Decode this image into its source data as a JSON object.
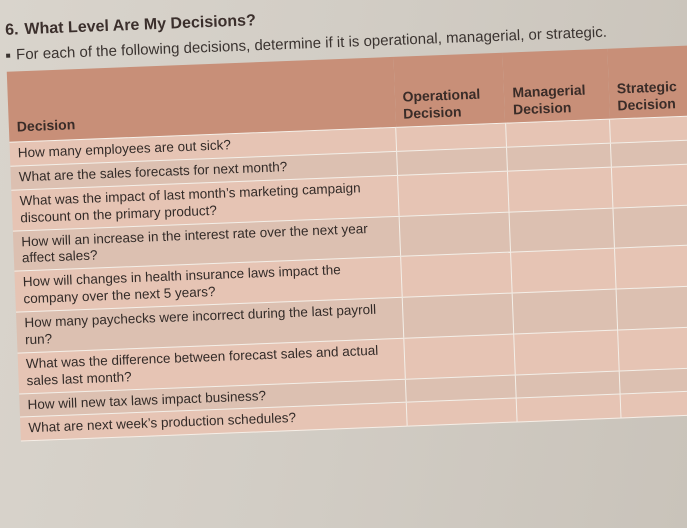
{
  "exercise": {
    "number": "6.",
    "title": "What Level Are My Decisions?",
    "instructions": "For each of the following decisions, determine if it is operational, managerial, or strategic."
  },
  "table": {
    "headers": {
      "decision": "Decision",
      "operational_line1": "Operational",
      "operational_line2": "Decision",
      "managerial_line1": "Managerial",
      "managerial_line2": "Decision",
      "strategic_line1": "Strategic",
      "strategic_line2": "Decision"
    },
    "rows": [
      "How many employees are out sick?",
      "What are the sales forecasts for next month?",
      "What was the impact of last month’s marketing campaign discount on the primary product?",
      "How will an increase in the interest rate over the next year affect sales?",
      "How will changes in health insurance laws impact the company over the next 5 years?",
      "How many paychecks were incorrect during the last payroll run?",
      "What was the difference between forecast sales and actual sales last month?",
      "How will new tax laws impact business?",
      "What are next week’s production schedules?"
    ]
  }
}
